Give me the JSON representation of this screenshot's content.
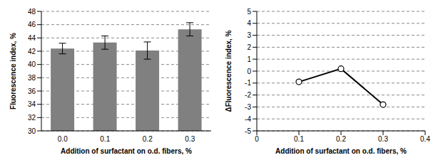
{
  "chart_data": [
    {
      "type": "bar",
      "categories": [
        "0.0",
        "0.1",
        "0.2",
        "0.3"
      ],
      "values": [
        42.4,
        43.3,
        42.1,
        45.3
      ],
      "errors": [
        0.8,
        1.0,
        1.3,
        1.0
      ],
      "color": "#808080",
      "ylim": [
        30,
        48
      ],
      "yticks": [
        30,
        32,
        34,
        36,
        38,
        40,
        42,
        44,
        46,
        48
      ],
      "xlabel": "Addition of surfactant on o.d. fibers, %",
      "ylabel": "Fluorescence index, %",
      "grid": true
    },
    {
      "type": "line",
      "x": [
        0.1,
        0.2,
        0.3
      ],
      "values": [
        -0.9,
        0.2,
        -2.8
      ],
      "color": "#000000",
      "marker": "circle",
      "line_style": "solid",
      "xlim": [
        0,
        0.4
      ],
      "xticks": [
        0,
        0.1,
        0.2,
        0.3,
        0.4
      ],
      "ylim": [
        -5,
        5
      ],
      "yticks": [
        -5,
        -4,
        -3,
        -2,
        -1,
        0,
        1,
        2,
        3,
        4,
        5
      ],
      "xlabel": "Addition of surfactant on o.d. fibers, %",
      "ylabel": "ΔFluorescence index, %",
      "grid": true
    }
  ]
}
